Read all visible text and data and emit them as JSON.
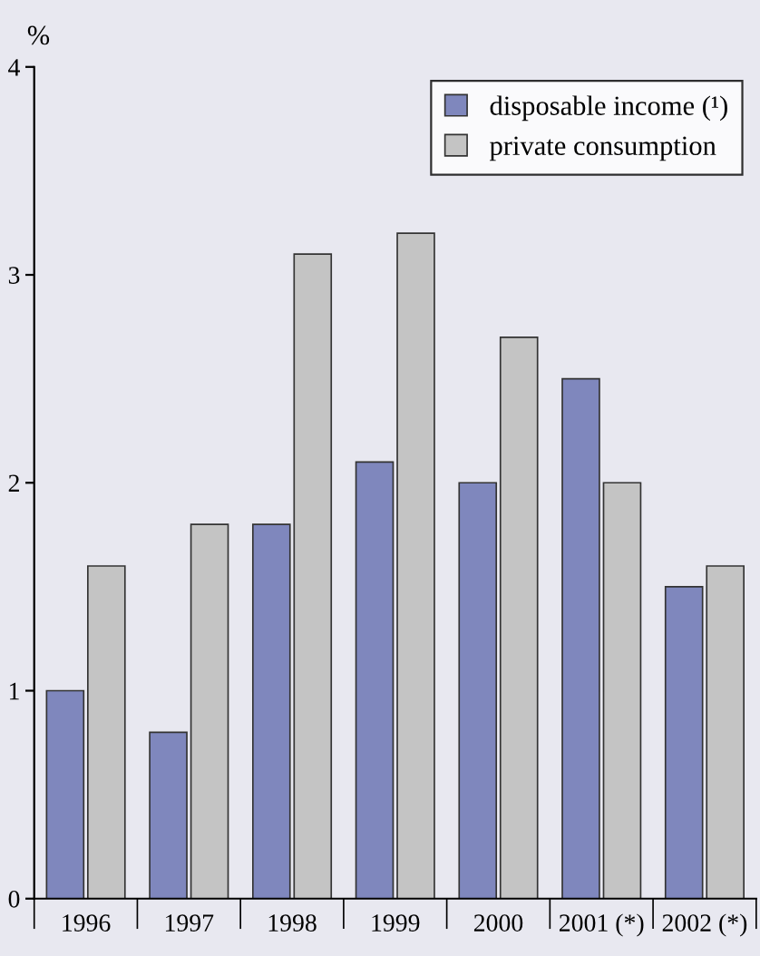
{
  "chart_data": {
    "type": "bar",
    "ylabel": "%",
    "categories": [
      "1996",
      "1997",
      "1998",
      "1999",
      "2000",
      "2001 (*)",
      "2002 (*)"
    ],
    "series": [
      {
        "name": "disposable income (¹)",
        "color": "#7f87bd",
        "values": [
          1.0,
          0.8,
          1.8,
          2.1,
          2.0,
          2.5,
          1.5
        ]
      },
      {
        "name": "private consumption",
        "color": "#c4c4c4",
        "values": [
          1.6,
          1.8,
          3.1,
          3.2,
          2.7,
          2.0,
          1.6
        ]
      }
    ],
    "ylim": [
      0,
      4
    ],
    "yticks": [
      0,
      1,
      2,
      3,
      4
    ],
    "grid": false,
    "legend": "top right"
  }
}
